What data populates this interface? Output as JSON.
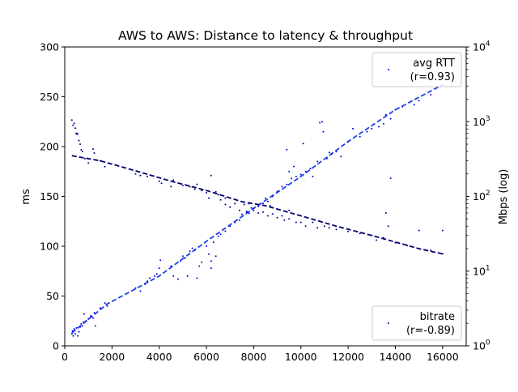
{
  "chart_data": {
    "type": "scatter",
    "title": "AWS to AWS: Distance to latency & throughput",
    "xlabel": "",
    "ylabel": "ms",
    "y2label": "Mbps (log)",
    "xlim": [
      0,
      17000
    ],
    "ylim": [
      0,
      300
    ],
    "y2lim": [
      1,
      10000
    ],
    "y2scale": "log",
    "x_ticks": [
      0,
      2000,
      4000,
      6000,
      8000,
      10000,
      12000,
      14000,
      16000
    ],
    "y_ticks": [
      0,
      50,
      100,
      150,
      200,
      250,
      300
    ],
    "y2_ticks": [
      {
        "value": 1,
        "base": "10",
        "exp": "0"
      },
      {
        "value": 10,
        "base": "10",
        "exp": "1"
      },
      {
        "value": 100,
        "base": "10",
        "exp": "2"
      },
      {
        "value": 1000,
        "base": "10",
        "exp": "3"
      },
      {
        "value": 10000,
        "base": "10",
        "exp": "4"
      }
    ],
    "grid": false,
    "series": [
      {
        "name": "avg RTT",
        "legend_label": "(r=0.93)",
        "legend_position": "top-right",
        "axis": "left",
        "color": "#0000ee",
        "trend_color": "#1f3fe8",
        "trend": [
          [
            300,
            13
          ],
          [
            1800,
            42
          ],
          [
            4000,
            70
          ],
          [
            6000,
            105
          ],
          [
            8000,
            138
          ],
          [
            10000,
            170
          ],
          [
            12000,
            205
          ],
          [
            14000,
            237
          ],
          [
            16000,
            262
          ]
        ],
        "points": [
          [
            300,
            12
          ],
          [
            330,
            15
          ],
          [
            360,
            10
          ],
          [
            400,
            17
          ],
          [
            450,
            12
          ],
          [
            500,
            18
          ],
          [
            550,
            10
          ],
          [
            600,
            14
          ],
          [
            650,
            19
          ],
          [
            700,
            22
          ],
          [
            750,
            20
          ],
          [
            800,
            24
          ],
          [
            820,
            32
          ],
          [
            900,
            25
          ],
          [
            1000,
            27
          ],
          [
            1100,
            30
          ],
          [
            1200,
            28
          ],
          [
            1250,
            33
          ],
          [
            1300,
            20
          ],
          [
            1500,
            38
          ],
          [
            1700,
            43
          ],
          [
            1800,
            40
          ],
          [
            3000,
            58
          ],
          [
            3200,
            55
          ],
          [
            3400,
            62
          ],
          [
            3500,
            65
          ],
          [
            3600,
            68
          ],
          [
            3800,
            70
          ],
          [
            3900,
            72
          ],
          [
            4000,
            78
          ],
          [
            4050,
            86
          ],
          [
            4500,
            80
          ],
          [
            4600,
            70
          ],
          [
            4800,
            67
          ],
          [
            4900,
            85
          ],
          [
            5000,
            90
          ],
          [
            5100,
            88
          ],
          [
            5200,
            70
          ],
          [
            5300,
            95
          ],
          [
            5400,
            98
          ],
          [
            5500,
            96
          ],
          [
            5600,
            68
          ],
          [
            5700,
            80
          ],
          [
            5800,
            84
          ],
          [
            6000,
            100
          ],
          [
            6100,
            92
          ],
          [
            6200,
            78
          ],
          [
            6200,
            85
          ],
          [
            6300,
            104
          ],
          [
            6400,
            90
          ],
          [
            6500,
            110
          ],
          [
            6600,
            112
          ],
          [
            6800,
            115
          ],
          [
            7000,
            120
          ],
          [
            7200,
            124
          ],
          [
            7400,
            126
          ],
          [
            7500,
            132
          ],
          [
            7700,
            135
          ],
          [
            7800,
            133
          ],
          [
            8000,
            138
          ],
          [
            8200,
            140
          ],
          [
            8400,
            143
          ],
          [
            8500,
            148
          ],
          [
            8600,
            145
          ],
          [
            8800,
            150
          ],
          [
            9000,
            155
          ],
          [
            9200,
            160
          ],
          [
            9400,
            162
          ],
          [
            9400,
            197
          ],
          [
            9500,
            175
          ],
          [
            9600,
            168
          ],
          [
            9700,
            180
          ],
          [
            9800,
            170
          ],
          [
            10000,
            172
          ],
          [
            10100,
            203
          ],
          [
            10200,
            175
          ],
          [
            10400,
            178
          ],
          [
            10500,
            170
          ],
          [
            10700,
            185
          ],
          [
            10800,
            224
          ],
          [
            10900,
            225
          ],
          [
            10950,
            215
          ],
          [
            11100,
            188
          ],
          [
            11200,
            194
          ],
          [
            11300,
            193
          ],
          [
            11500,
            195
          ],
          [
            11700,
            190
          ],
          [
            12000,
            205
          ],
          [
            12200,
            218
          ],
          [
            12500,
            210
          ],
          [
            12800,
            215
          ],
          [
            13000,
            218
          ],
          [
            13300,
            220
          ],
          [
            13500,
            223
          ],
          [
            13600,
            232
          ],
          [
            13800,
            228
          ],
          [
            14000,
            237
          ],
          [
            14300,
            240
          ],
          [
            14800,
            242
          ],
          [
            15000,
            246
          ],
          [
            15500,
            252
          ],
          [
            16000,
            262
          ]
        ]
      },
      {
        "name": "bitrate",
        "legend_label": "(r=-0.89)",
        "legend_position": "bottom-right",
        "axis": "right",
        "color": "#00008b",
        "trend_color": "#00006e",
        "trend": [
          [
            300,
            350
          ],
          [
            1500,
            300
          ],
          [
            3000,
            220
          ],
          [
            4500,
            160
          ],
          [
            6000,
            120
          ],
          [
            7500,
            85
          ],
          [
            8500,
            75
          ],
          [
            10000,
            55
          ],
          [
            11500,
            40
          ],
          [
            13000,
            30
          ],
          [
            15000,
            20
          ],
          [
            16000,
            17
          ]
        ],
        "points": [
          [
            300,
            1050
          ],
          [
            350,
            900
          ],
          [
            400,
            950
          ],
          [
            450,
            820
          ],
          [
            480,
            700
          ],
          [
            520,
            680
          ],
          [
            550,
            690
          ],
          [
            600,
            560
          ],
          [
            650,
            500
          ],
          [
            700,
            420
          ],
          [
            750,
            400
          ],
          [
            850,
            320
          ],
          [
            1000,
            280
          ],
          [
            1200,
            430
          ],
          [
            1250,
            380
          ],
          [
            1500,
            300
          ],
          [
            1700,
            250
          ],
          [
            3000,
            200
          ],
          [
            3200,
            190
          ],
          [
            3500,
            185
          ],
          [
            4000,
            160
          ],
          [
            4100,
            150
          ],
          [
            4500,
            135
          ],
          [
            5000,
            140
          ],
          [
            5300,
            135
          ],
          [
            5500,
            125
          ],
          [
            5800,
            120
          ],
          [
            6000,
            112
          ],
          [
            6100,
            95
          ],
          [
            6200,
            190
          ],
          [
            6400,
            115
          ],
          [
            6500,
            105
          ],
          [
            6600,
            90
          ],
          [
            6800,
            78
          ],
          [
            7000,
            72
          ],
          [
            7200,
            80
          ],
          [
            7400,
            65
          ],
          [
            7600,
            78
          ],
          [
            7700,
            62
          ],
          [
            7800,
            80
          ],
          [
            8000,
            65
          ],
          [
            8200,
            60
          ],
          [
            8400,
            62
          ],
          [
            8600,
            55
          ],
          [
            8800,
            58
          ],
          [
            9000,
            52
          ],
          [
            9200,
            55
          ],
          [
            9300,
            48
          ],
          [
            9500,
            50
          ],
          [
            9800,
            45
          ],
          [
            10000,
            45
          ],
          [
            10200,
            40
          ],
          [
            10500,
            45
          ],
          [
            10700,
            38
          ],
          [
            11000,
            40
          ],
          [
            11200,
            38
          ],
          [
            11500,
            36
          ],
          [
            12000,
            34
          ],
          [
            12500,
            32
          ],
          [
            13000,
            30
          ],
          [
            13200,
            26
          ],
          [
            13500,
            28
          ],
          [
            13600,
            60
          ],
          [
            13700,
            40
          ],
          [
            13800,
            175
          ],
          [
            14000,
            24
          ],
          [
            14500,
            22
          ],
          [
            15000,
            35
          ],
          [
            15500,
            19
          ],
          [
            16000,
            17
          ],
          [
            16000,
            35
          ],
          [
            9500,
            65
          ],
          [
            8700,
            75
          ],
          [
            7900,
            70
          ],
          [
            5600,
            145
          ],
          [
            4600,
            165
          ],
          [
            6800,
            95
          ]
        ]
      }
    ]
  }
}
